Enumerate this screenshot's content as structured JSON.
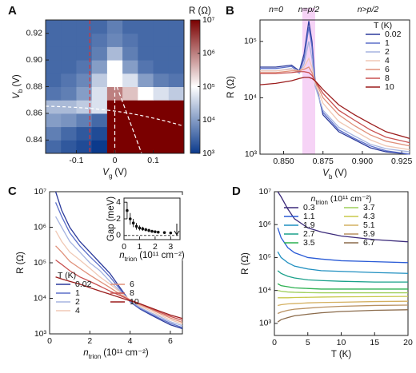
{
  "chart_data": [
    {
      "type": "heatmap",
      "panel_label": "A",
      "xlabel": {
        "symbol": "V",
        "subscript": "g",
        "unit": "(V)"
      },
      "ylabel": {
        "symbol": "V",
        "subscript": "b",
        "unit": "(V)"
      },
      "colorbar_label": "R (Ω)",
      "x": [
        -0.16,
        -0.12,
        -0.08,
        -0.04,
        0,
        0.04,
        0.08,
        0.12,
        0.16
      ],
      "y": [
        0.835,
        0.845,
        0.855,
        0.865,
        0.875,
        0.885,
        0.895,
        0.905,
        0.915,
        0.925
      ],
      "z": [
        [
          3000,
          2000,
          1500,
          1000,
          10000000,
          10000000,
          10000000,
          10000000,
          10000000
        ],
        [
          5000,
          3000,
          2000,
          1500,
          10000000,
          10000000,
          10000000,
          10000000,
          10000000
        ],
        [
          10000,
          8000,
          5000,
          3000,
          10000000,
          10000000,
          10000000,
          10000000,
          10000000
        ],
        [
          20000,
          20000,
          30000,
          50000,
          10000000,
          10000000,
          10000000,
          10000000,
          10000000
        ],
        [
          4000,
          5000,
          10000,
          50000,
          1000000,
          300000,
          100000,
          50000,
          30000
        ],
        [
          3000,
          4000,
          6000,
          30000,
          100000,
          50000,
          10000,
          5000,
          4000
        ],
        [
          3000,
          3000,
          4000,
          10000,
          100000,
          10000,
          4000,
          3000,
          3000
        ],
        [
          3000,
          3000,
          3000,
          5000,
          20000,
          5000,
          3000,
          3000,
          3000
        ],
        [
          3000,
          3000,
          3000,
          4000,
          6000,
          4000,
          3000,
          3000,
          3000
        ],
        [
          3000,
          3000,
          3000,
          3000,
          5000,
          3000,
          3000,
          3000,
          3000
        ]
      ],
      "xlim": [
        -0.18,
        0.18
      ],
      "xticks": [
        -0.1,
        0,
        0.1
      ],
      "ylim": [
        0.83,
        0.93
      ],
      "yticks": [
        0.84,
        0.86,
        0.88,
        {
          "value": 0.9,
          "label": "0.90"
        },
        0.92
      ],
      "colormap": [
        "#0b3a8c",
        "#ffffff",
        "#7a0000"
      ],
      "cbar_log": true,
      "cbar_lim": [
        1000,
        10000000
      ],
      "cbar_ticks": [
        {
          "value": 1000,
          "label": "10³"
        },
        {
          "value": 10000,
          "label": "10⁴"
        },
        {
          "value": 100000,
          "label": "10⁵"
        },
        {
          "value": 1000000,
          "label": "10⁶"
        },
        {
          "value": 10000000,
          "label": "10⁷"
        }
      ]
    },
    {
      "type": "line",
      "panel_label": "B",
      "xlabel": {
        "symbol": "V",
        "subscript": "b",
        "unit": "(V)"
      },
      "ylabel": "R (Ω)",
      "annotations": [
        "n=0",
        "n=p/2",
        "n>p/2"
      ],
      "legend": {
        "title": "T (K)",
        "position": "upper right",
        "columns": 1
      },
      "ylog": true,
      "x": [
        0.835,
        0.845,
        0.855,
        0.86,
        0.863,
        0.866,
        0.868,
        0.87,
        0.875,
        0.885,
        0.895,
        0.905,
        0.915,
        0.93
      ],
      "series": [
        {
          "name": "0.02",
          "color": "#2b3a9b",
          "values": [
            35000,
            35000,
            38000,
            30000,
            60000,
            230000,
            100000,
            20000,
            5000,
            2500,
            1800,
            1300,
            1100,
            1000
          ]
        },
        {
          "name": "1",
          "color": "#5b6fc9",
          "values": [
            33000,
            33000,
            36000,
            28000,
            50000,
            180000,
            80000,
            18000,
            5500,
            2700,
            1900,
            1400,
            1150,
            1000
          ]
        },
        {
          "name": "2",
          "color": "#a6b4e0",
          "values": [
            30000,
            30000,
            33000,
            27000,
            40000,
            100000,
            50000,
            16000,
            6000,
            3000,
            2100,
            1500,
            1250,
            1100
          ]
        },
        {
          "name": "4",
          "color": "#f0c8b5",
          "values": [
            30000,
            30000,
            32000,
            30000,
            35000,
            50000,
            35000,
            18000,
            8000,
            3800,
            2600,
            1800,
            1400,
            1200
          ]
        },
        {
          "name": "6",
          "color": "#e0907a",
          "values": [
            28000,
            28000,
            30000,
            30000,
            32000,
            35000,
            28000,
            20000,
            10000,
            5000,
            3200,
            2200,
            1700,
            1400
          ]
        },
        {
          "name": "8",
          "color": "#c85050",
          "values": [
            27000,
            27000,
            28000,
            29000,
            29000,
            28000,
            25000,
            20000,
            12000,
            6000,
            4000,
            2700,
            2000,
            1600
          ]
        },
        {
          "name": "10",
          "color": "#9b1c1c",
          "values": [
            17000,
            18000,
            20000,
            22000,
            23000,
            23000,
            22000,
            20000,
            14000,
            7500,
            5000,
            3500,
            2500,
            1900
          ]
        }
      ],
      "xlim": [
        0.835,
        0.93
      ],
      "xticks": [
        {
          "value": 0.85,
          "label": "0.850"
        },
        0.875,
        {
          "value": 0.9,
          "label": "0.900"
        },
        0.925
      ],
      "ylim": [
        1000,
        240000
      ],
      "yticks": [
        {
          "value": 1000,
          "label": "10³"
        },
        {
          "value": 10000,
          "label": "10⁴"
        },
        {
          "value": 100000,
          "label": "10⁵"
        }
      ]
    },
    {
      "type": "line",
      "panel_label": "C",
      "xlabel": {
        "symbol": "n",
        "subscript": "trion",
        "unit": "(10¹¹ cm⁻²)"
      },
      "ylabel": "R (Ω)",
      "legend": {
        "title": "T (K)",
        "position": "lower left",
        "columns": 2
      },
      "ylog": true,
      "x": [
        0.3,
        0.6,
        1,
        1.5,
        2,
        2.5,
        3,
        3.5,
        4,
        4.5,
        5,
        5.5,
        6,
        6.6
      ],
      "series": [
        {
          "name": "0.02",
          "color": "#2b3a9b",
          "values": [
            10000000,
            3000000,
            1000000,
            400000,
            200000,
            100000,
            50000,
            20000,
            8000,
            5000,
            3500,
            2500,
            1800,
            1400
          ]
        },
        {
          "name": "1",
          "color": "#5b6fc9",
          "values": [
            5000000,
            2000000,
            700000,
            300000,
            150000,
            80000,
            40000,
            18000,
            8000,
            5200,
            3700,
            2700,
            2000,
            1500
          ]
        },
        {
          "name": "2",
          "color": "#a6b4e0",
          "values": [
            2000000,
            1000000,
            400000,
            200000,
            100000,
            60000,
            30000,
            16000,
            8500,
            5500,
            4000,
            3000,
            2200,
            1700
          ]
        },
        {
          "name": "4",
          "color": "#f0c8b5",
          "values": [
            800000,
            400000,
            200000,
            120000,
            70000,
            40000,
            25000,
            15000,
            9000,
            6000,
            4500,
            3300,
            2500,
            1900
          ]
        },
        {
          "name": "6",
          "color": "#e0907a",
          "values": [
            300000,
            200000,
            110000,
            70000,
            45000,
            30000,
            20000,
            13000,
            9000,
            6500,
            5000,
            3700,
            2800,
            2100
          ]
        },
        {
          "name": "8",
          "color": "#c85050",
          "values": [
            120000,
            90000,
            60000,
            40000,
            30000,
            22000,
            16000,
            12000,
            9000,
            7000,
            5300,
            4000,
            3100,
            2400
          ]
        },
        {
          "name": "10",
          "color": "#9b1c1c",
          "values": [
            40000,
            35000,
            30000,
            25000,
            20000,
            16000,
            13000,
            10500,
            8500,
            7000,
            5500,
            4300,
            3400,
            2700
          ]
        }
      ],
      "xlim": [
        0,
        6.6
      ],
      "xticks": [
        0,
        2,
        4,
        6
      ],
      "ylim": [
        1000,
        10000000
      ],
      "yticks": [
        {
          "value": 1000,
          "label": "10³"
        },
        {
          "value": 10000,
          "label": "10⁴"
        },
        {
          "value": 100000,
          "label": "10⁵"
        },
        {
          "value": 1000000,
          "label": "10⁶"
        },
        {
          "value": 10000000,
          "label": "10⁷"
        }
      ]
    },
    {
      "type": "errorbar",
      "xlabel": {
        "symbol": "n",
        "subscript": "trion",
        "unit": "(10¹¹ cm⁻²)"
      },
      "ylabel": "Gap (meV)",
      "color": "#111111",
      "x": [
        0.2,
        0.4,
        0.6,
        0.8,
        1.0,
        1.2,
        1.4,
        1.6,
        1.8,
        2.0,
        2.2,
        2.6,
        3.0
      ],
      "values": [
        3.0,
        2.0,
        1.5,
        1.1,
        0.9,
        0.8,
        0.7,
        0.6,
        0.5,
        0.45,
        0.4,
        0.35,
        0.3
      ],
      "errors": [
        1.0,
        0.7,
        0.5,
        0.4,
        0.3,
        0.25,
        0.2,
        0.2,
        0.15,
        0.15,
        0.1,
        0.1,
        0.1
      ],
      "xlim": [
        0,
        3.6
      ],
      "xticks": [
        0,
        1,
        2,
        3
      ],
      "ylim": [
        -0.5,
        4.5
      ],
      "yticks": [
        0,
        2,
        4
      ]
    },
    {
      "type": "line",
      "panel_label": "D",
      "xlabel": "T (K)",
      "ylabel": "R (Ω)",
      "legend": {
        "title": {
          "symbol": "n",
          "subscript": "trion",
          "unit": "(10¹¹ cm⁻²)"
        },
        "position": "upper center",
        "columns": 2
      },
      "ylog": true,
      "x": [
        0.5,
        1,
        2,
        3,
        5,
        7,
        10,
        15,
        20
      ],
      "series": [
        {
          "name": "0.3",
          "color": "#3b2a7a",
          "values": [
            10000000,
            7000000,
            3000000,
            1500000,
            800000,
            600000,
            450000,
            350000,
            300000
          ]
        },
        {
          "name": "1.1",
          "color": "#2a5bd6",
          "values": [
            800000,
            400000,
            200000,
            140000,
            100000,
            90000,
            80000,
            75000,
            70000
          ]
        },
        {
          "name": "1.9",
          "color": "#1f8fc0",
          "values": [
            150000,
            100000,
            70000,
            55000,
            45000,
            40000,
            38000,
            35000,
            33000
          ]
        },
        {
          "name": "2.7",
          "color": "#1aa08a",
          "values": [
            40000,
            33000,
            27000,
            24000,
            21000,
            20000,
            19000,
            18000,
            18000
          ]
        },
        {
          "name": "3.5",
          "color": "#2cb050",
          "values": [
            16000,
            14000,
            13000,
            12000,
            11500,
            11000,
            11000,
            11000,
            11000
          ]
        },
        {
          "name": "3.7",
          "color": "#9ecf5a",
          "values": [
            10000,
            9500,
            9000,
            8800,
            8600,
            8500,
            8500,
            8500,
            8500
          ]
        },
        {
          "name": "4.3",
          "color": "#c8c84a",
          "values": [
            6000,
            6000,
            6000,
            6100,
            6200,
            6300,
            6400,
            6500,
            6600
          ]
        },
        {
          "name": "5.1",
          "color": "#d4b060",
          "values": [
            3500,
            3700,
            3900,
            4000,
            4200,
            4300,
            4400,
            4600,
            4700
          ]
        },
        {
          "name": "5.9",
          "color": "#b89060",
          "values": [
            2000,
            2200,
            2500,
            2700,
            2900,
            3100,
            3300,
            3500,
            3600
          ]
        },
        {
          "name": "6.7",
          "color": "#8a6a4a",
          "values": [
            1100,
            1300,
            1500,
            1700,
            1900,
            2100,
            2300,
            2500,
            2600
          ]
        }
      ],
      "xlim": [
        0,
        20
      ],
      "xticks": [
        0,
        5,
        10,
        15,
        20
      ],
      "ylim": [
        430,
        10000000
      ],
      "yticks": [
        {
          "value": 1000,
          "label": "10³"
        },
        {
          "value": 10000,
          "label": "10⁴"
        },
        {
          "value": 100000,
          "label": "10⁵"
        },
        {
          "value": 1000000,
          "label": "10⁶"
        },
        {
          "value": 10000000,
          "label": "10⁷"
        }
      ]
    }
  ]
}
